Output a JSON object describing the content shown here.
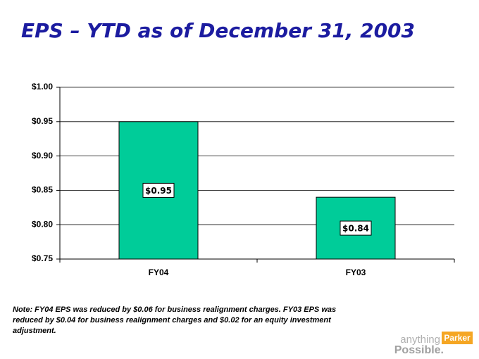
{
  "chart_data": {
    "type": "bar",
    "title": "EPS – YTD as of December 31, 2003",
    "categories": [
      "FY04",
      "FY03"
    ],
    "values": [
      0.95,
      0.84
    ],
    "value_labels": [
      "$0.95",
      "$0.84"
    ],
    "color": "#00cc99",
    "ylim": [
      0.75,
      1.0
    ],
    "yticks": [
      {
        "value": 0.75,
        "label": "$0.75"
      },
      {
        "value": 0.8,
        "label": "$0.80"
      },
      {
        "value": 0.85,
        "label": "$0.85"
      },
      {
        "value": 0.9,
        "label": "$0.90"
      },
      {
        "value": 0.95,
        "label": "$0.95"
      },
      {
        "value": 1.0,
        "label": "$1.00"
      }
    ],
    "grid": true,
    "note": "Note:  FY04 EPS was reduced by $0.06 for business realignment charges.  FY03 EPS was reduced by $0.04 for business realignment charges and $0.02 for an equity investment adjustment."
  },
  "logo": {
    "top": "anything",
    "brand": "Parker",
    "bottom": "Possible."
  }
}
